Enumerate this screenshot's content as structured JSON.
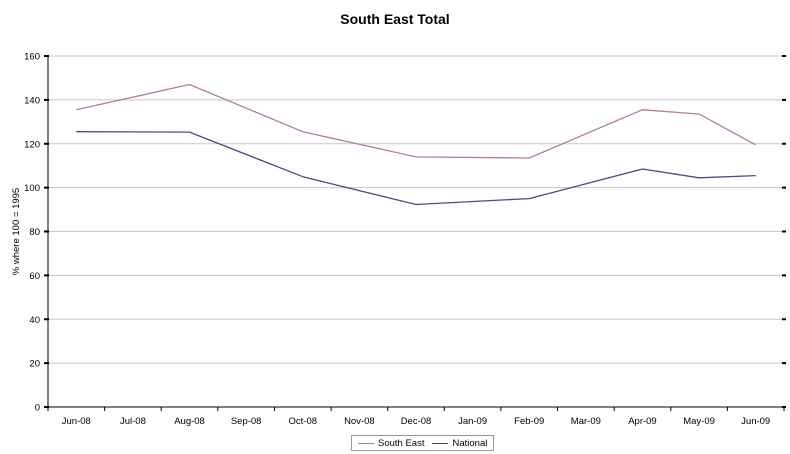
{
  "chart_data": {
    "type": "line",
    "title": "South East Total",
    "ylabel": "% where 100 = 1995",
    "xlabel": "",
    "categories": [
      "Jun-08",
      "Jul-08",
      "Aug-08",
      "Sep-08",
      "Oct-08",
      "Nov-08",
      "Dec-08",
      "Jan-09",
      "Feb-09",
      "Mar-09",
      "Apr-09",
      "May-09",
      "Jun-09"
    ],
    "ylim": [
      0,
      160
    ],
    "yticks": [
      "0",
      "20",
      "40",
      "60",
      "80",
      "100",
      "120",
      "140",
      "160"
    ],
    "grid": true,
    "legend_position": "bottom",
    "series": [
      {
        "name": "South East",
        "color": "#b5808a",
        "points": [
          [
            0,
            135.5
          ],
          [
            2,
            147
          ],
          [
            4,
            125.5
          ],
          [
            6,
            114
          ],
          [
            8,
            113.5
          ],
          [
            10,
            135.5
          ],
          [
            11,
            133.5
          ],
          [
            12,
            119.5
          ]
        ]
      },
      {
        "name": "National",
        "color": "#4a4a8e",
        "points": [
          [
            0,
            125.5
          ],
          [
            2,
            125.3
          ],
          [
            4,
            105
          ],
          [
            6,
            92.3
          ],
          [
            8,
            95
          ],
          [
            10,
            108.5
          ],
          [
            11,
            104.5
          ],
          [
            12,
            105.5
          ]
        ]
      }
    ]
  }
}
